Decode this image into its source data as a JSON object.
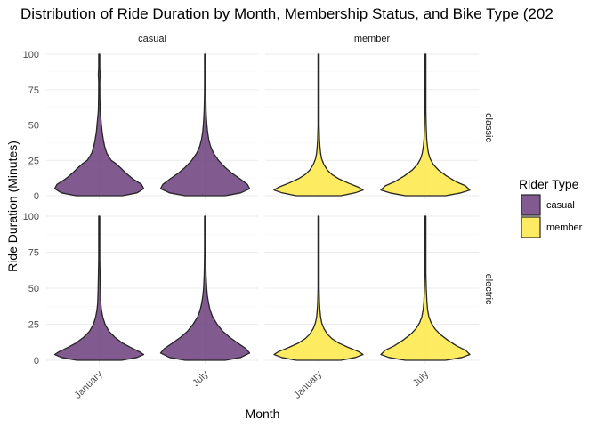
{
  "chart_data": {
    "type": "violin",
    "title": "Distribution of Ride Duration by Month, Membership Status, and Bike Type (202",
    "xlabel": "Month",
    "ylabel": "Ride Duration (Minutes)",
    "ylim": [
      0,
      100
    ],
    "yticks": [
      "0",
      "25",
      "50",
      "75",
      "100"
    ],
    "categories": [
      "January",
      "July"
    ],
    "facet_columns": [
      "casual",
      "member"
    ],
    "facet_rows": [
      "classic",
      "electric"
    ],
    "grid": true,
    "legend": {
      "title": "Rider Type",
      "position": "right",
      "entries": [
        {
          "label": "casual",
          "color": "#6b3e7d"
        },
        {
          "label": "member",
          "color": "#fde845"
        }
      ]
    },
    "panels": [
      {
        "column": "casual",
        "row": "classic",
        "series": [
          {
            "month": "January",
            "profile": [
              [
                0,
                0.52
              ],
              [
                2,
                0.85
              ],
              [
                5,
                1.0
              ],
              [
                8,
                0.95
              ],
              [
                12,
                0.75
              ],
              [
                16,
                0.6
              ],
              [
                20,
                0.47
              ],
              [
                23,
                0.36
              ],
              [
                25,
                0.27
              ],
              [
                30,
                0.17
              ],
              [
                35,
                0.12
              ],
              [
                40,
                0.09
              ],
              [
                45,
                0.065
              ],
              [
                50,
                0.05
              ],
              [
                55,
                0.035
              ],
              [
                60,
                0.02
              ],
              [
                70,
                0.014
              ],
              [
                80,
                0.012
              ],
              [
                86,
                0.02
              ],
              [
                90,
                0.01
              ],
              [
                95,
                0.006
              ],
              [
                100,
                0.003
              ]
            ]
          },
          {
            "month": "July",
            "profile": [
              [
                0,
                0.45
              ],
              [
                2,
                0.8
              ],
              [
                5,
                1.0
              ],
              [
                8,
                0.95
              ],
              [
                12,
                0.78
              ],
              [
                16,
                0.6
              ],
              [
                20,
                0.45
              ],
              [
                25,
                0.3
              ],
              [
                30,
                0.19
              ],
              [
                35,
                0.12
              ],
              [
                40,
                0.08
              ],
              [
                45,
                0.055
              ],
              [
                50,
                0.04
              ],
              [
                55,
                0.03
              ],
              [
                60,
                0.022
              ],
              [
                70,
                0.015
              ],
              [
                80,
                0.01
              ],
              [
                90,
                0.006
              ],
              [
                100,
                0.002
              ]
            ]
          }
        ]
      },
      {
        "column": "member",
        "row": "classic",
        "series": [
          {
            "month": "January",
            "profile": [
              [
                0,
                0.5
              ],
              [
                2,
                0.82
              ],
              [
                4,
                1.0
              ],
              [
                6,
                0.9
              ],
              [
                9,
                0.66
              ],
              [
                12,
                0.45
              ],
              [
                15,
                0.3
              ],
              [
                18,
                0.2
              ],
              [
                22,
                0.12
              ],
              [
                26,
                0.07
              ],
              [
                30,
                0.045
              ],
              [
                35,
                0.03
              ],
              [
                40,
                0.02
              ],
              [
                50,
                0.012
              ],
              [
                60,
                0.008
              ],
              [
                80,
                0.005
              ],
              [
                100,
                0.003
              ]
            ]
          },
          {
            "month": "July",
            "profile": [
              [
                0,
                0.45
              ],
              [
                2,
                0.8
              ],
              [
                4,
                1.0
              ],
              [
                7,
                0.9
              ],
              [
                10,
                0.68
              ],
              [
                14,
                0.47
              ],
              [
                18,
                0.3
              ],
              [
                22,
                0.18
              ],
              [
                26,
                0.11
              ],
              [
                30,
                0.07
              ],
              [
                35,
                0.045
              ],
              [
                40,
                0.03
              ],
              [
                50,
                0.018
              ],
              [
                60,
                0.01
              ],
              [
                80,
                0.005
              ],
              [
                100,
                0.003
              ]
            ]
          }
        ]
      },
      {
        "column": "casual",
        "row": "electric",
        "series": [
          {
            "month": "January",
            "profile": [
              [
                0,
                0.5
              ],
              [
                2,
                0.85
              ],
              [
                4,
                1.0
              ],
              [
                6,
                0.9
              ],
              [
                9,
                0.7
              ],
              [
                12,
                0.52
              ],
              [
                16,
                0.35
              ],
              [
                20,
                0.22
              ],
              [
                25,
                0.13
              ],
              [
                30,
                0.08
              ],
              [
                35,
                0.05
              ],
              [
                40,
                0.035
              ],
              [
                50,
                0.025
              ],
              [
                60,
                0.018
              ],
              [
                70,
                0.012
              ],
              [
                80,
                0.008
              ],
              [
                90,
                0.005
              ],
              [
                100,
                0.002
              ]
            ]
          },
          {
            "month": "July",
            "profile": [
              [
                0,
                0.45
              ],
              [
                2,
                0.8
              ],
              [
                5,
                1.0
              ],
              [
                8,
                0.92
              ],
              [
                12,
                0.73
              ],
              [
                16,
                0.55
              ],
              [
                20,
                0.4
              ],
              [
                25,
                0.27
              ],
              [
                30,
                0.17
              ],
              [
                35,
                0.11
              ],
              [
                40,
                0.075
              ],
              [
                45,
                0.05
              ],
              [
                50,
                0.035
              ],
              [
                60,
                0.02
              ],
              [
                70,
                0.013
              ],
              [
                80,
                0.009
              ],
              [
                90,
                0.006
              ],
              [
                100,
                0.002
              ]
            ]
          }
        ]
      },
      {
        "column": "member",
        "row": "electric",
        "series": [
          {
            "month": "January",
            "profile": [
              [
                0,
                0.5
              ],
              [
                2,
                0.83
              ],
              [
                4,
                1.0
              ],
              [
                6,
                0.9
              ],
              [
                9,
                0.66
              ],
              [
                12,
                0.45
              ],
              [
                15,
                0.3
              ],
              [
                18,
                0.2
              ],
              [
                22,
                0.12
              ],
              [
                26,
                0.07
              ],
              [
                30,
                0.045
              ],
              [
                35,
                0.03
              ],
              [
                40,
                0.02
              ],
              [
                50,
                0.012
              ],
              [
                60,
                0.008
              ],
              [
                80,
                0.005
              ],
              [
                100,
                0.003
              ]
            ]
          },
          {
            "month": "July",
            "profile": [
              [
                0,
                0.45
              ],
              [
                2,
                0.82
              ],
              [
                4,
                1.0
              ],
              [
                7,
                0.9
              ],
              [
                10,
                0.7
              ],
              [
                14,
                0.5
              ],
              [
                18,
                0.33
              ],
              [
                22,
                0.21
              ],
              [
                26,
                0.13
              ],
              [
                30,
                0.08
              ],
              [
                35,
                0.05
              ],
              [
                40,
                0.035
              ],
              [
                50,
                0.02
              ],
              [
                60,
                0.012
              ],
              [
                80,
                0.006
              ],
              [
                100,
                0.003
              ]
            ]
          }
        ]
      }
    ]
  }
}
